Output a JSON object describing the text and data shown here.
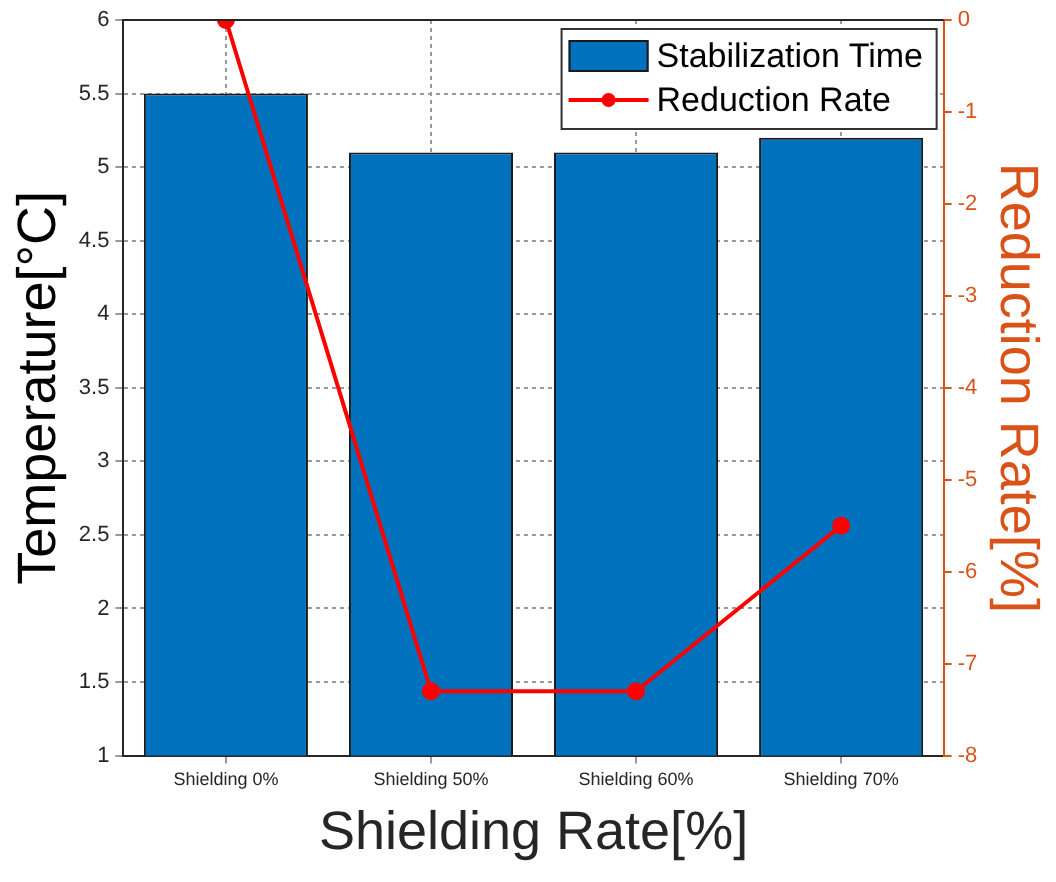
{
  "chart_data": {
    "type": "bar",
    "xlabel": "Shielding Rate[%]",
    "ylabel": "Temperature[°C]",
    "y2label": "Reduction Rate[%]",
    "categories": [
      "Shielding 0%",
      "Shielding 50%",
      "Shielding 60%",
      "Shielding 70%"
    ],
    "series": [
      {
        "name": "Stabilization Time",
        "color": "#0072bd",
        "values": [
          5.5,
          5.1,
          5.1,
          5.2
        ]
      },
      {
        "name": "Reduction Rate",
        "type": "line",
        "axis": "y2",
        "color": "#ff0000",
        "marker": "circle",
        "values": [
          0,
          -7.3,
          -7.3,
          -5.5
        ]
      }
    ],
    "ylim": [
      1,
      6
    ],
    "yticks": [
      1,
      1.5,
      2,
      2.5,
      3,
      3.5,
      4,
      4.5,
      5,
      5.5,
      6
    ],
    "y2lim": [
      -8,
      0
    ],
    "y2ticks": [
      -8,
      -7,
      -6,
      -5,
      -4,
      -3,
      -2,
      -1,
      0
    ],
    "grid": true,
    "legend": "top right"
  }
}
